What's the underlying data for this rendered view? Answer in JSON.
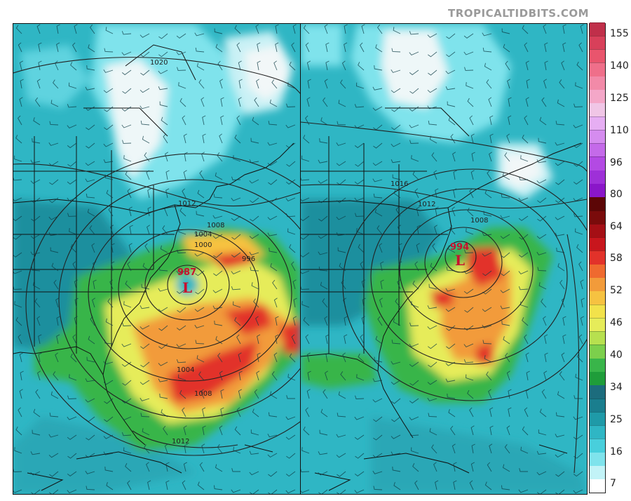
{
  "watermark": "TROPICALTIDBITS.COM",
  "colors": {
    "ocean_base": "#2fb6c4",
    "light_cyan": "#7fe3ec",
    "white_area": "#f2f7f8",
    "teal": "#1f9aa8",
    "green": "#39b54a",
    "yellow": "#f2e24b",
    "orange": "#f29b3a",
    "red": "#e2322a",
    "low_marker": "#c8102e"
  },
  "left_panel": {
    "low_pressure": "987",
    "low_symbol": "L",
    "isobar_labels": [
      "1020",
      "1012",
      "1008",
      "1004",
      "1000",
      "996",
      "1004",
      "1008",
      "1012"
    ]
  },
  "right_panel": {
    "low_pressure": "994",
    "low_symbol": "L",
    "isobar_labels": [
      "1016",
      "1012",
      "1008"
    ]
  },
  "colorbar": {
    "ticks": [
      "155",
      "140",
      "125",
      "110",
      "96",
      "80",
      "64",
      "58",
      "52",
      "46",
      "40",
      "34",
      "25",
      "16",
      "7"
    ],
    "tick_values": [
      155,
      140,
      125,
      110,
      96,
      80,
      64,
      58,
      52,
      46,
      40,
      34,
      25,
      16,
      7
    ],
    "bands": [
      "#ffffff",
      "#c2f3f7",
      "#7fe3ec",
      "#48cfdc",
      "#2fb6c4",
      "#1f9aa8",
      "#1a7e8e",
      "#1c6c7d",
      "#1f9d3a",
      "#39b54a",
      "#7ccf4c",
      "#b7e04f",
      "#e6ec5a",
      "#f2e24b",
      "#f6c241",
      "#f29b3a",
      "#ef6a2f",
      "#e2322a",
      "#c8161d",
      "#a50f15",
      "#7a0b0b",
      "#5c0606",
      "#8a16c9",
      "#9e30d8",
      "#b34ae3",
      "#c46ae9",
      "#d58cef",
      "#e6aef3",
      "#f0c6e6",
      "#f4a7c8",
      "#f28aa8",
      "#ef6f8a",
      "#e9556d",
      "#d8405a",
      "#c02f4a"
    ]
  }
}
